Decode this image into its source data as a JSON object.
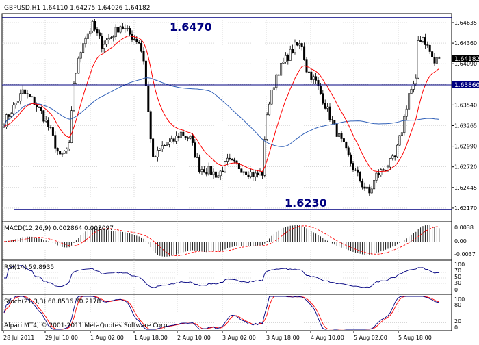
{
  "colors": {
    "candle": "#000000",
    "ma_fast": "#ff0000",
    "ma_slow": "#3060b8",
    "level_line": "#000080",
    "level_text": "#000080",
    "macd_signal": "#ff0000",
    "rsi_line": "#000080",
    "stoch_main": "#000080",
    "stoch_signal": "#ff0000",
    "grid": "#c0c0c0",
    "bid_label_bg": "#000000",
    "bid_label_text": "#ffffff"
  },
  "main": {
    "header": "GBPUSD,H1  1.64110 1.64275 1.64026 1.64182",
    "level_high_label": "1.6470",
    "level_low_label": "1.6230",
    "price_axis": [
      "1.64635",
      "1.64360",
      "1.64090",
      "1.63815",
      "1.63540",
      "1.63265",
      "1.62990",
      "1.62720",
      "1.62445",
      "1.62170"
    ],
    "bid_label": "1.64182",
    "hline_label": "1.63860"
  },
  "macd": {
    "header": "MACD(12,26,9) 0.002864 0.003097",
    "axis": [
      "0.0038",
      "0.00",
      "-0.0037"
    ]
  },
  "rsi": {
    "header": "RSI(14) 59.8935",
    "axis": [
      "100",
      "70",
      "50",
      "30",
      "0"
    ]
  },
  "stoch": {
    "header": "Stoch(21,3,3) 68.8536 70.2178",
    "axis": [
      "100",
      "80",
      "20",
      "0"
    ],
    "watermark": "Alpari MT4, © 2001-2011 MetaQuotes Software Corp."
  },
  "time_axis": [
    "28 Jul 2011",
    "29 Jul 10:00",
    "1 Aug 02:00",
    "1 Aug 18:00",
    "2 Aug 10:00",
    "3 Aug 02:00",
    "3 Aug 18:00",
    "4 Aug 10:00",
    "5 Aug 02:00",
    "5 Aug 18:00"
  ],
  "chart_data": {
    "type": "candlestick",
    "symbol": "GBPUSD",
    "timeframe": "H1",
    "ylim": [
      1.6217,
      1.647
    ],
    "control_points": [
      [
        0,
        1.6332
      ],
      [
        4,
        1.6352
      ],
      [
        8,
        1.6372
      ],
      [
        12,
        1.6362
      ],
      [
        16,
        1.6345
      ],
      [
        20,
        1.632
      ],
      [
        24,
        1.6285
      ],
      [
        28,
        1.63
      ],
      [
        30,
        1.6385
      ],
      [
        34,
        1.644
      ],
      [
        38,
        1.646
      ],
      [
        42,
        1.6435
      ],
      [
        46,
        1.6445
      ],
      [
        50,
        1.646
      ],
      [
        54,
        1.6448
      ],
      [
        58,
        1.6438
      ],
      [
        60,
        1.6415
      ],
      [
        62,
        1.6345
      ],
      [
        64,
        1.6282
      ],
      [
        68,
        1.63
      ],
      [
        72,
        1.6305
      ],
      [
        76,
        1.6318
      ],
      [
        80,
        1.631
      ],
      [
        84,
        1.6272
      ],
      [
        88,
        1.6268
      ],
      [
        92,
        1.6262
      ],
      [
        96,
        1.628
      ],
      [
        100,
        1.6275
      ],
      [
        104,
        1.6268
      ],
      [
        108,
        1.6262
      ],
      [
        111,
        1.6265
      ],
      [
        113,
        1.6345
      ],
      [
        117,
        1.6395
      ],
      [
        121,
        1.6415
      ],
      [
        125,
        1.6432
      ],
      [
        128,
        1.6435
      ],
      [
        130,
        1.6402
      ],
      [
        134,
        1.6385
      ],
      [
        138,
        1.6355
      ],
      [
        142,
        1.6325
      ],
      [
        146,
        1.63
      ],
      [
        150,
        1.6272
      ],
      [
        154,
        1.625
      ],
      [
        157,
        1.6238
      ],
      [
        160,
        1.6262
      ],
      [
        164,
        1.6272
      ],
      [
        168,
        1.6285
      ],
      [
        171,
        1.6322
      ],
      [
        174,
        1.637
      ],
      [
        177,
        1.6385
      ],
      [
        178,
        1.644
      ],
      [
        180,
        1.6445
      ],
      [
        183,
        1.6425
      ],
      [
        185,
        1.641
      ],
      [
        187,
        1.6418
      ]
    ],
    "ma_fast_period": 14,
    "ma_slow_period": 60
  }
}
